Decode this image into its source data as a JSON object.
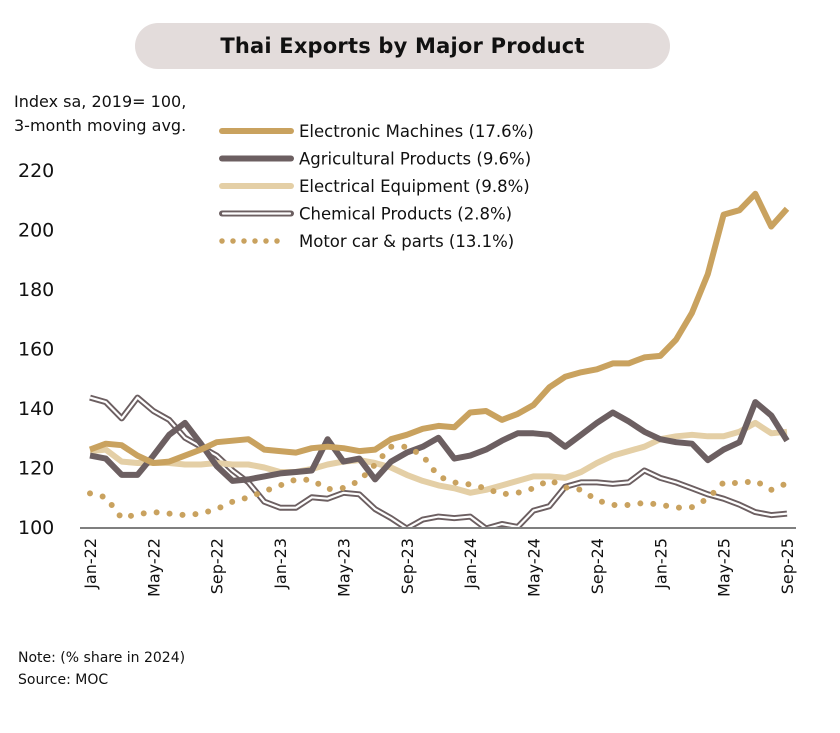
{
  "chart_data": {
    "type": "line",
    "title": "Thai Exports by Major Product",
    "ylabel": "Index sa, 2019= 100, 3-month moving avg.",
    "ylabel_lines": [
      "Index sa, 2019= 100,",
      "3-month moving avg."
    ],
    "xlabel": "",
    "ylim": [
      100,
      220
    ],
    "yticks": [
      100,
      120,
      140,
      160,
      180,
      200,
      220
    ],
    "xtick_labels": [
      "Jan-22",
      "May-22",
      "Sep-22",
      "Jan-23",
      "May-23",
      "Sep-23",
      "Jan-24",
      "May-24",
      "Sep-24",
      "Jan-25",
      "May-25",
      "Sep-25"
    ],
    "x": [
      "Jan-22",
      "Feb-22",
      "Mar-22",
      "Apr-22",
      "May-22",
      "Jun-22",
      "Jul-22",
      "Aug-22",
      "Sep-22",
      "Oct-22",
      "Nov-22",
      "Dec-22",
      "Jan-23",
      "Feb-23",
      "Mar-23",
      "Apr-23",
      "May-23",
      "Jun-23",
      "Jul-23",
      "Aug-23",
      "Sep-23",
      "Oct-23",
      "Nov-23",
      "Dec-23",
      "Jan-24",
      "Feb-24",
      "Mar-24",
      "Apr-24",
      "May-24",
      "Jun-24",
      "Jul-24",
      "Aug-24",
      "Sep-24",
      "Oct-24",
      "Nov-24",
      "Dec-24",
      "Jan-25",
      "Feb-25",
      "Mar-25",
      "Apr-25",
      "May-25",
      "Jun-25",
      "Jul-25",
      "Aug-25",
      "Sep-25"
    ],
    "grid": false,
    "legend_placement": "top-center",
    "series": [
      {
        "name": "Electronic Machines (17.6%)",
        "color": "#c9a25f",
        "style": "solid",
        "values": [
          126,
          128,
          127.5,
          124,
          121.5,
          122,
          124,
          126,
          128.5,
          129,
          129.5,
          126,
          125.5,
          125,
          126.5,
          127,
          126.5,
          125.5,
          126,
          129.5,
          131,
          133,
          134,
          133.5,
          138.5,
          139,
          136,
          138,
          141,
          147,
          150.5,
          152,
          153,
          155,
          155,
          157,
          157.5,
          163,
          172,
          185,
          205,
          206.5,
          212,
          201,
          207
        ]
      },
      {
        "name": "Agricultural Products (9.6%)",
        "color": "#6c5f61",
        "style": "solid",
        "values": [
          124,
          123,
          117.5,
          117.5,
          124,
          131,
          135,
          128,
          120.5,
          115.5,
          116,
          117,
          118,
          118.5,
          119,
          129.5,
          122,
          123,
          116,
          122,
          125,
          127,
          130,
          123,
          124,
          126,
          129,
          131.5,
          131.5,
          131,
          127,
          131,
          135,
          138.5,
          135.5,
          132,
          129.5,
          128.5,
          128,
          122.5,
          126,
          128.5,
          142,
          137.5,
          129
        ]
      },
      {
        "name": "Electrical Equipment (9.8%)",
        "color": "#e4cfa6",
        "style": "solid",
        "values": [
          125.5,
          126,
          122,
          121.5,
          121.5,
          121.5,
          121,
          121,
          121.5,
          121,
          121,
          120,
          118.5,
          118.5,
          119.5,
          121,
          122,
          122.5,
          121.5,
          120,
          117.5,
          115.5,
          114,
          113,
          111.5,
          112.5,
          114,
          115.5,
          117,
          117,
          116.5,
          118.5,
          121.5,
          124,
          125.5,
          127,
          129.5,
          130.5,
          131,
          130.5,
          130.5,
          132,
          135,
          131.5,
          132
        ]
      },
      {
        "name": "Chemical Products (2.8%)",
        "color": "#6c5f61",
        "style": "double",
        "values": [
          143.5,
          142,
          136.5,
          143.5,
          139,
          136,
          130,
          127,
          124,
          119,
          115,
          108.5,
          106.5,
          106.5,
          110,
          109.5,
          111.5,
          111,
          106,
          103,
          99.5,
          102.5,
          103.5,
          103,
          103.5,
          99.5,
          101,
          100,
          105.5,
          107,
          113.5,
          115,
          115,
          114.5,
          115,
          119,
          116.5,
          115,
          113,
          111,
          109.5,
          107.5,
          105,
          104,
          104.5
        ]
      },
      {
        "name": "Motor car & parts (13.1%)",
        "color": "#c9a25f",
        "style": "dotted",
        "values": [
          111.3,
          110,
          103,
          104.3,
          105,
          104.5,
          104,
          104.5,
          106,
          108.5,
          110,
          112,
          114,
          116,
          115.8,
          112.7,
          113.1,
          115.5,
          121,
          127,
          127,
          124,
          117,
          115,
          114.3,
          113,
          111,
          111.5,
          113,
          115.8,
          113.3,
          112.5,
          109,
          107.4,
          107.4,
          108.1,
          107.5,
          106.5,
          106.7,
          109.5,
          115,
          114.7,
          115.5,
          112.5,
          114.7
        ]
      }
    ]
  },
  "footer": {
    "note": "Note: (% share in 2024)",
    "source": "Source: MOC"
  }
}
